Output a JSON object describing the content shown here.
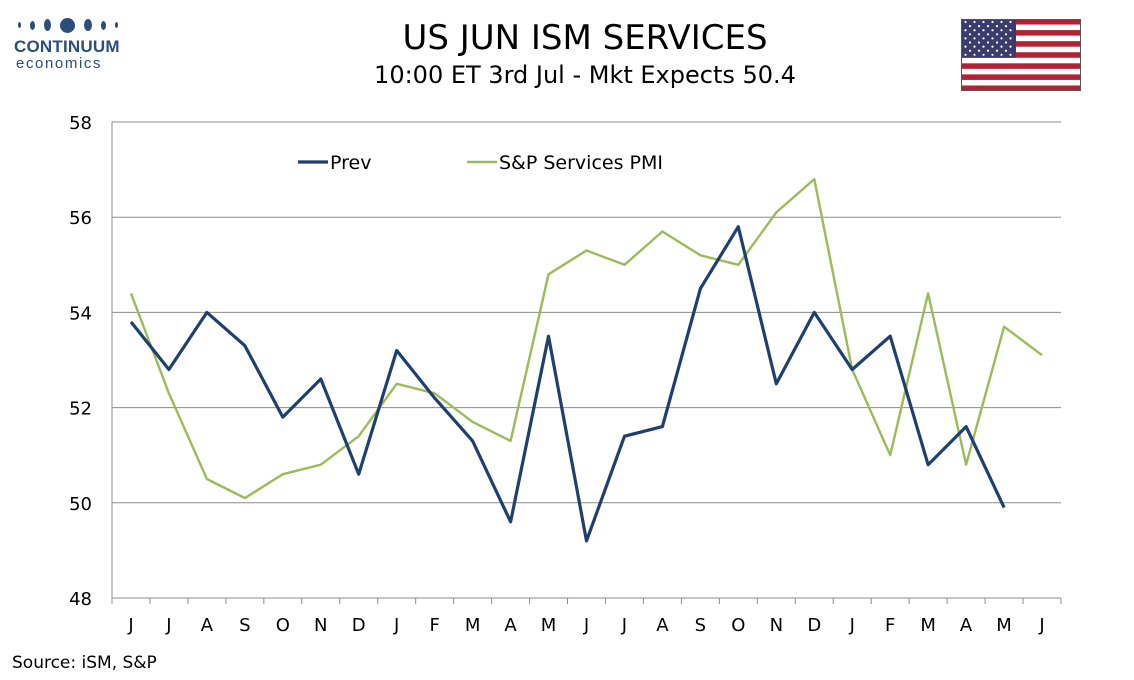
{
  "logo": {
    "name": "CONTINUUM",
    "sub": "economics"
  },
  "header": {
    "title": "US JUN ISM SERVICES",
    "subtitle": "10:00 ET 3rd Jul - Mkt Expects 50.4"
  },
  "flag": {
    "icon": "us-flag-icon",
    "stripe_red": "#b22234",
    "canton_blue": "#3c3b6e"
  },
  "source": "Source: iSM, S&P",
  "chart_data": {
    "type": "line",
    "categories": [
      "J",
      "J",
      "A",
      "S",
      "O",
      "N",
      "D",
      "J",
      "F",
      "M",
      "A",
      "M",
      "J",
      "J",
      "A",
      "S",
      "O",
      "N",
      "D",
      "J",
      "F",
      "M",
      "A",
      "M",
      "J"
    ],
    "ylim": [
      48,
      58
    ],
    "yticks": [
      48,
      50,
      52,
      54,
      56,
      58
    ],
    "grid": true,
    "legend_position": "top-left",
    "series": [
      {
        "name": "Prev",
        "color": "#1f3f6e",
        "values": [
          53.8,
          52.8,
          54.0,
          53.3,
          51.8,
          52.6,
          50.6,
          53.2,
          52.2,
          51.3,
          49.6,
          53.5,
          49.2,
          51.4,
          51.6,
          54.5,
          55.8,
          52.5,
          54.0,
          52.8,
          53.5,
          50.8,
          51.6,
          49.9,
          null
        ]
      },
      {
        "name": "S&P Services PMI",
        "color": "#9bbb59",
        "values": [
          54.4,
          52.3,
          50.5,
          50.1,
          50.6,
          50.8,
          51.4,
          52.5,
          52.3,
          51.7,
          51.3,
          54.8,
          55.3,
          55.0,
          55.7,
          55.2,
          55.0,
          56.1,
          56.8,
          52.8,
          51.0,
          54.4,
          50.8,
          53.7,
          53.1
        ]
      }
    ]
  }
}
